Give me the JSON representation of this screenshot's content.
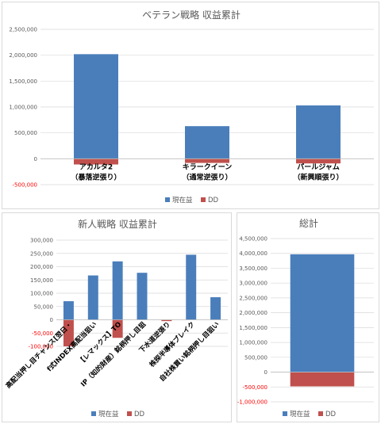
{
  "colors": {
    "profit": "#4a7ebb",
    "dd": "#c0504d",
    "grid": "#d9d9d9",
    "axis": "#bfbfbf",
    "neg_tick": "#ff0000"
  },
  "legend": {
    "profit": "現在益",
    "dd": "DD"
  },
  "chart_data": [
    {
      "id": "veteran",
      "type": "bar",
      "title": "ベテラン戦略 収益累計",
      "categories": [
        [
          "アカルタ2",
          "（暴落逆張り）"
        ],
        [
          "キラークイーン",
          "（通常逆張り）"
        ],
        [
          "パールジャム",
          "（新興順張り）"
        ]
      ],
      "series": [
        {
          "name": "現在益",
          "values": [
            2020000,
            630000,
            1030000
          ]
        },
        {
          "name": "DD",
          "values": [
            -110000,
            -80000,
            -90000
          ]
        }
      ],
      "ylim": [
        -500000,
        2500000
      ],
      "yticks": [
        2500000,
        2000000,
        1500000,
        1000000,
        500000,
        0,
        -500000
      ],
      "ytick_labels": [
        "2,500,000",
        "2,000,000",
        "1,500,000",
        "1,000,000",
        "500,000",
        "0",
        "-500,000"
      ],
      "grid": true,
      "legend": "bottom"
    },
    {
      "id": "new",
      "type": "bar",
      "title": "新人戦略 収益累計",
      "categories": [
        "高配当押し目チャンス[翌日・",
        "f式INDEX高配当狙い",
        "【レマックス】TO",
        "IP（知的財産）銘柄押し目狙",
        "下水道逆張り",
        "株探半導体ブレイク",
        "自社株買い銘柄押し目狙い"
      ],
      "series": [
        {
          "name": "現在益",
          "values": [
            70000,
            167000,
            220000,
            177000,
            0,
            245000,
            85000
          ]
        },
        {
          "name": "DD",
          "values": [
            -100000,
            0,
            -68000,
            0,
            -5000,
            0,
            0
          ]
        }
      ],
      "ylim": [
        -100000,
        300000
      ],
      "yticks": [
        300000,
        250000,
        200000,
        150000,
        100000,
        50000,
        0,
        -50000,
        -100000
      ],
      "ytick_labels": [
        "300,000",
        "250,000",
        "200,000",
        "150,000",
        "100,000",
        "50,000",
        "0",
        "-50,000",
        "-100,000"
      ],
      "grid": true,
      "legend": "bottom"
    },
    {
      "id": "total",
      "type": "bar",
      "title": "総計",
      "categories": [
        ""
      ],
      "series": [
        {
          "name": "現在益",
          "values": [
            3970000
          ]
        },
        {
          "name": "DD",
          "values": [
            -480000
          ]
        }
      ],
      "ylim": [
        -1000000,
        4500000
      ],
      "yticks": [
        4500000,
        4000000,
        3500000,
        3000000,
        2500000,
        2000000,
        1500000,
        1000000,
        500000,
        0,
        -500000,
        -1000000
      ],
      "ytick_labels": [
        "4,500,000",
        "4,000,000",
        "3,500,000",
        "3,000,000",
        "2,500,000",
        "2,000,000",
        "1,500,000",
        "1,000,000",
        "500,000",
        "0",
        "-500,000",
        "-1,000,000"
      ],
      "grid": true,
      "legend": "bottom"
    }
  ]
}
